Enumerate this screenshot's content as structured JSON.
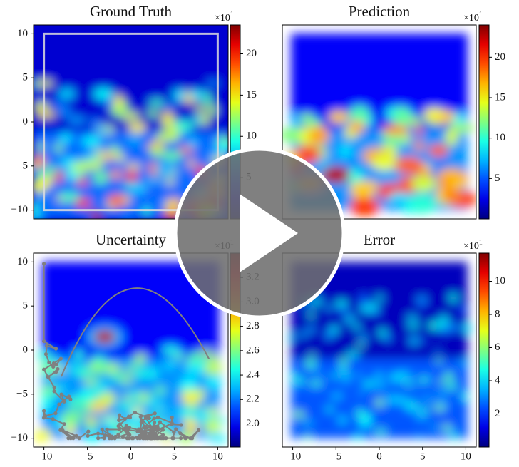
{
  "chart_data": [
    {
      "type": "heatmap",
      "title": "Ground Truth",
      "colormap": "jet",
      "xlim": [
        -11.2,
        11.2
      ],
      "ylim": [
        -11,
        11
      ],
      "yticks": [
        {
          "value": -10,
          "label": "−10"
        },
        {
          "value": -5,
          "label": "−5"
        },
        0,
        5,
        10
      ],
      "colorbar": {
        "lim": [
          0,
          23.5
        ],
        "ticks": [
          5,
          10,
          15,
          20
        ],
        "offset": {
          "base": "×10",
          "exponent": "1"
        }
      }
    },
    {
      "type": "heatmap",
      "title": "Prediction",
      "colormap": "jet",
      "xlim": [
        -11.2,
        11.2
      ],
      "ylim": [
        -11,
        11
      ],
      "colorbar": {
        "lim": [
          0,
          24
        ],
        "ticks": [
          5,
          10,
          15,
          20
        ],
        "offset": {
          "base": "×10",
          "exponent": "1"
        }
      }
    },
    {
      "type": "heatmap",
      "title": "Uncertainty",
      "colormap": "jet",
      "xlim": [
        -11.2,
        11.2
      ],
      "ylim": [
        -11,
        11
      ],
      "xticks": [
        {
          "value": -10,
          "label": "−10"
        },
        {
          "value": -5,
          "label": "−5"
        },
        0,
        5,
        10
      ],
      "yticks": [
        {
          "value": -10,
          "label": "−10"
        },
        {
          "value": -5,
          "label": "−5"
        },
        0,
        5,
        10
      ],
      "colorbar": {
        "lim": [
          1.81,
          3.4
        ],
        "ticks": [
          {
            "value": 2,
            "label": "2.0"
          },
          2.2,
          2.4,
          2.6,
          2.8,
          {
            "value": 3,
            "label": "3.0"
          },
          3.2
        ],
        "offset": {
          "base": "×10",
          "exponent": "1"
        }
      }
    },
    {
      "type": "heatmap",
      "title": "Error",
      "colormap": "jet",
      "xlim": [
        -11.2,
        11.2
      ],
      "ylim": [
        -11,
        11
      ],
      "xticks": [
        {
          "value": -10,
          "label": "−10"
        },
        {
          "value": -5,
          "label": "−5"
        },
        0,
        5,
        10
      ],
      "colorbar": {
        "lim": [
          0,
          11.7
        ],
        "ticks": [
          2,
          4,
          6,
          8,
          10
        ],
        "offset": {
          "base": "×10",
          "exponent": "1"
        }
      }
    }
  ]
}
